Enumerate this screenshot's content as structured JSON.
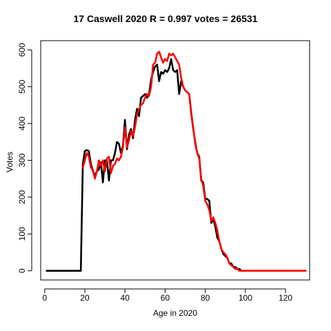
{
  "chart_data": {
    "type": "line",
    "title": "17 Caswell 2020 R = 0.997 votes = 26531",
    "xlabel": "Age in 2020",
    "ylabel": "Votes",
    "xlim": [
      -2,
      132
    ],
    "ylim": [
      -25,
      625
    ],
    "xticks": [
      0,
      20,
      40,
      60,
      80,
      100,
      120
    ],
    "yticks": [
      0,
      100,
      200,
      300,
      400,
      500,
      600
    ],
    "series": [
      {
        "color": "#000000",
        "x": [
          1,
          2,
          3,
          4,
          5,
          6,
          7,
          8,
          9,
          10,
          11,
          12,
          13,
          14,
          15,
          16,
          17,
          18,
          19,
          20,
          21,
          22,
          23,
          24,
          25,
          26,
          27,
          28,
          29,
          30,
          31,
          32,
          33,
          34,
          35,
          36,
          37,
          38,
          39,
          40,
          41,
          42,
          43,
          44,
          45,
          46,
          47,
          48,
          49,
          50,
          51,
          52,
          53,
          54,
          55,
          56,
          57,
          58,
          59,
          60,
          61,
          62,
          63,
          64,
          65,
          66,
          67,
          68,
          69,
          70,
          71,
          72,
          73,
          74,
          75,
          76,
          77,
          78,
          79,
          80,
          81,
          82,
          83,
          84,
          85,
          86,
          87,
          88,
          89,
          90,
          91,
          92,
          93,
          94,
          95,
          96,
          97,
          98,
          99,
          100,
          101,
          102,
          103,
          104,
          105,
          106,
          107,
          108,
          109,
          110,
          111,
          112,
          113,
          114,
          115,
          116,
          117,
          118,
          119,
          120,
          121,
          122,
          123,
          124,
          125,
          126,
          127,
          128,
          129,
          130
        ],
        "y": [
          0,
          0,
          0,
          0,
          0,
          0,
          0,
          0,
          0,
          0,
          0,
          0,
          0,
          0,
          0,
          0,
          0,
          0,
          290,
          325,
          328,
          325,
          290,
          270,
          260,
          270,
          275,
          295,
          240,
          300,
          300,
          245,
          300,
          300,
          320,
          350,
          345,
          320,
          340,
          410,
          330,
          370,
          385,
          360,
          410,
          440,
          420,
          470,
          475,
          480,
          470,
          480,
          520,
          540,
          555,
          560,
          515,
          540,
          535,
          545,
          540,
          550,
          575,
          545,
          540,
          545,
          480,
          515,
          500,
          490,
          485,
          480,
          430,
          385,
          350,
          320,
          310,
          245,
          240,
          195,
          195,
          190,
          130,
          140,
          120,
          90,
          80,
          60,
          45,
          40,
          35,
          20,
          20,
          10,
          10,
          5,
          5,
          0,
          0,
          0,
          0,
          0,
          0,
          0,
          0,
          0,
          0,
          0,
          0,
          0,
          0,
          0,
          0,
          0,
          0,
          0,
          0,
          0,
          0,
          0,
          0,
          0,
          0,
          0,
          0,
          0,
          0,
          0,
          0,
          0
        ]
      },
      {
        "color": "#ff0000",
        "x": [
          19,
          20,
          21,
          22,
          23,
          24,
          25,
          26,
          27,
          28,
          29,
          30,
          31,
          32,
          33,
          34,
          35,
          36,
          37,
          38,
          39,
          40,
          41,
          42,
          43,
          44,
          45,
          46,
          47,
          48,
          49,
          50,
          51,
          52,
          53,
          54,
          55,
          56,
          57,
          58,
          59,
          60,
          61,
          62,
          63,
          64,
          65,
          66,
          67,
          68,
          69,
          70,
          71,
          72,
          73,
          74,
          75,
          76,
          77,
          78,
          79,
          80,
          81,
          82,
          83,
          84,
          85,
          86,
          87,
          88,
          89,
          90,
          91,
          92,
          93,
          94,
          95,
          96,
          97,
          98,
          99,
          100,
          101,
          102,
          103,
          104,
          105,
          106,
          107,
          108,
          109,
          110,
          111,
          112,
          113,
          114,
          115,
          116,
          117,
          118,
          119,
          120,
          121,
          122,
          123,
          124,
          125,
          126,
          127,
          128,
          129,
          130
        ],
        "y": [
          280,
          300,
          320,
          310,
          280,
          275,
          250,
          270,
          300,
          285,
          300,
          270,
          305,
          310,
          265,
          285,
          290,
          305,
          300,
          310,
          335,
          390,
          335,
          355,
          380,
          365,
          390,
          425,
          440,
          450,
          455,
          470,
          480,
          475,
          500,
          560,
          565,
          590,
          595,
          580,
          565,
          575,
          570,
          590,
          585,
          590,
          580,
          570,
          560,
          525,
          500,
          490,
          485,
          480,
          425,
          390,
          345,
          320,
          305,
          250,
          230,
          190,
          180,
          165,
          135,
          145,
          130,
          110,
          80,
          60,
          50,
          45,
          35,
          20,
          15,
          10,
          5,
          5,
          0,
          0,
          0,
          0,
          0,
          0,
          0,
          0,
          0,
          0,
          0,
          0,
          0,
          0,
          0,
          0,
          0,
          0,
          0,
          0,
          0,
          0,
          0,
          0,
          0,
          0,
          0,
          0,
          0,
          0,
          0,
          0,
          0,
          0
        ]
      }
    ]
  }
}
